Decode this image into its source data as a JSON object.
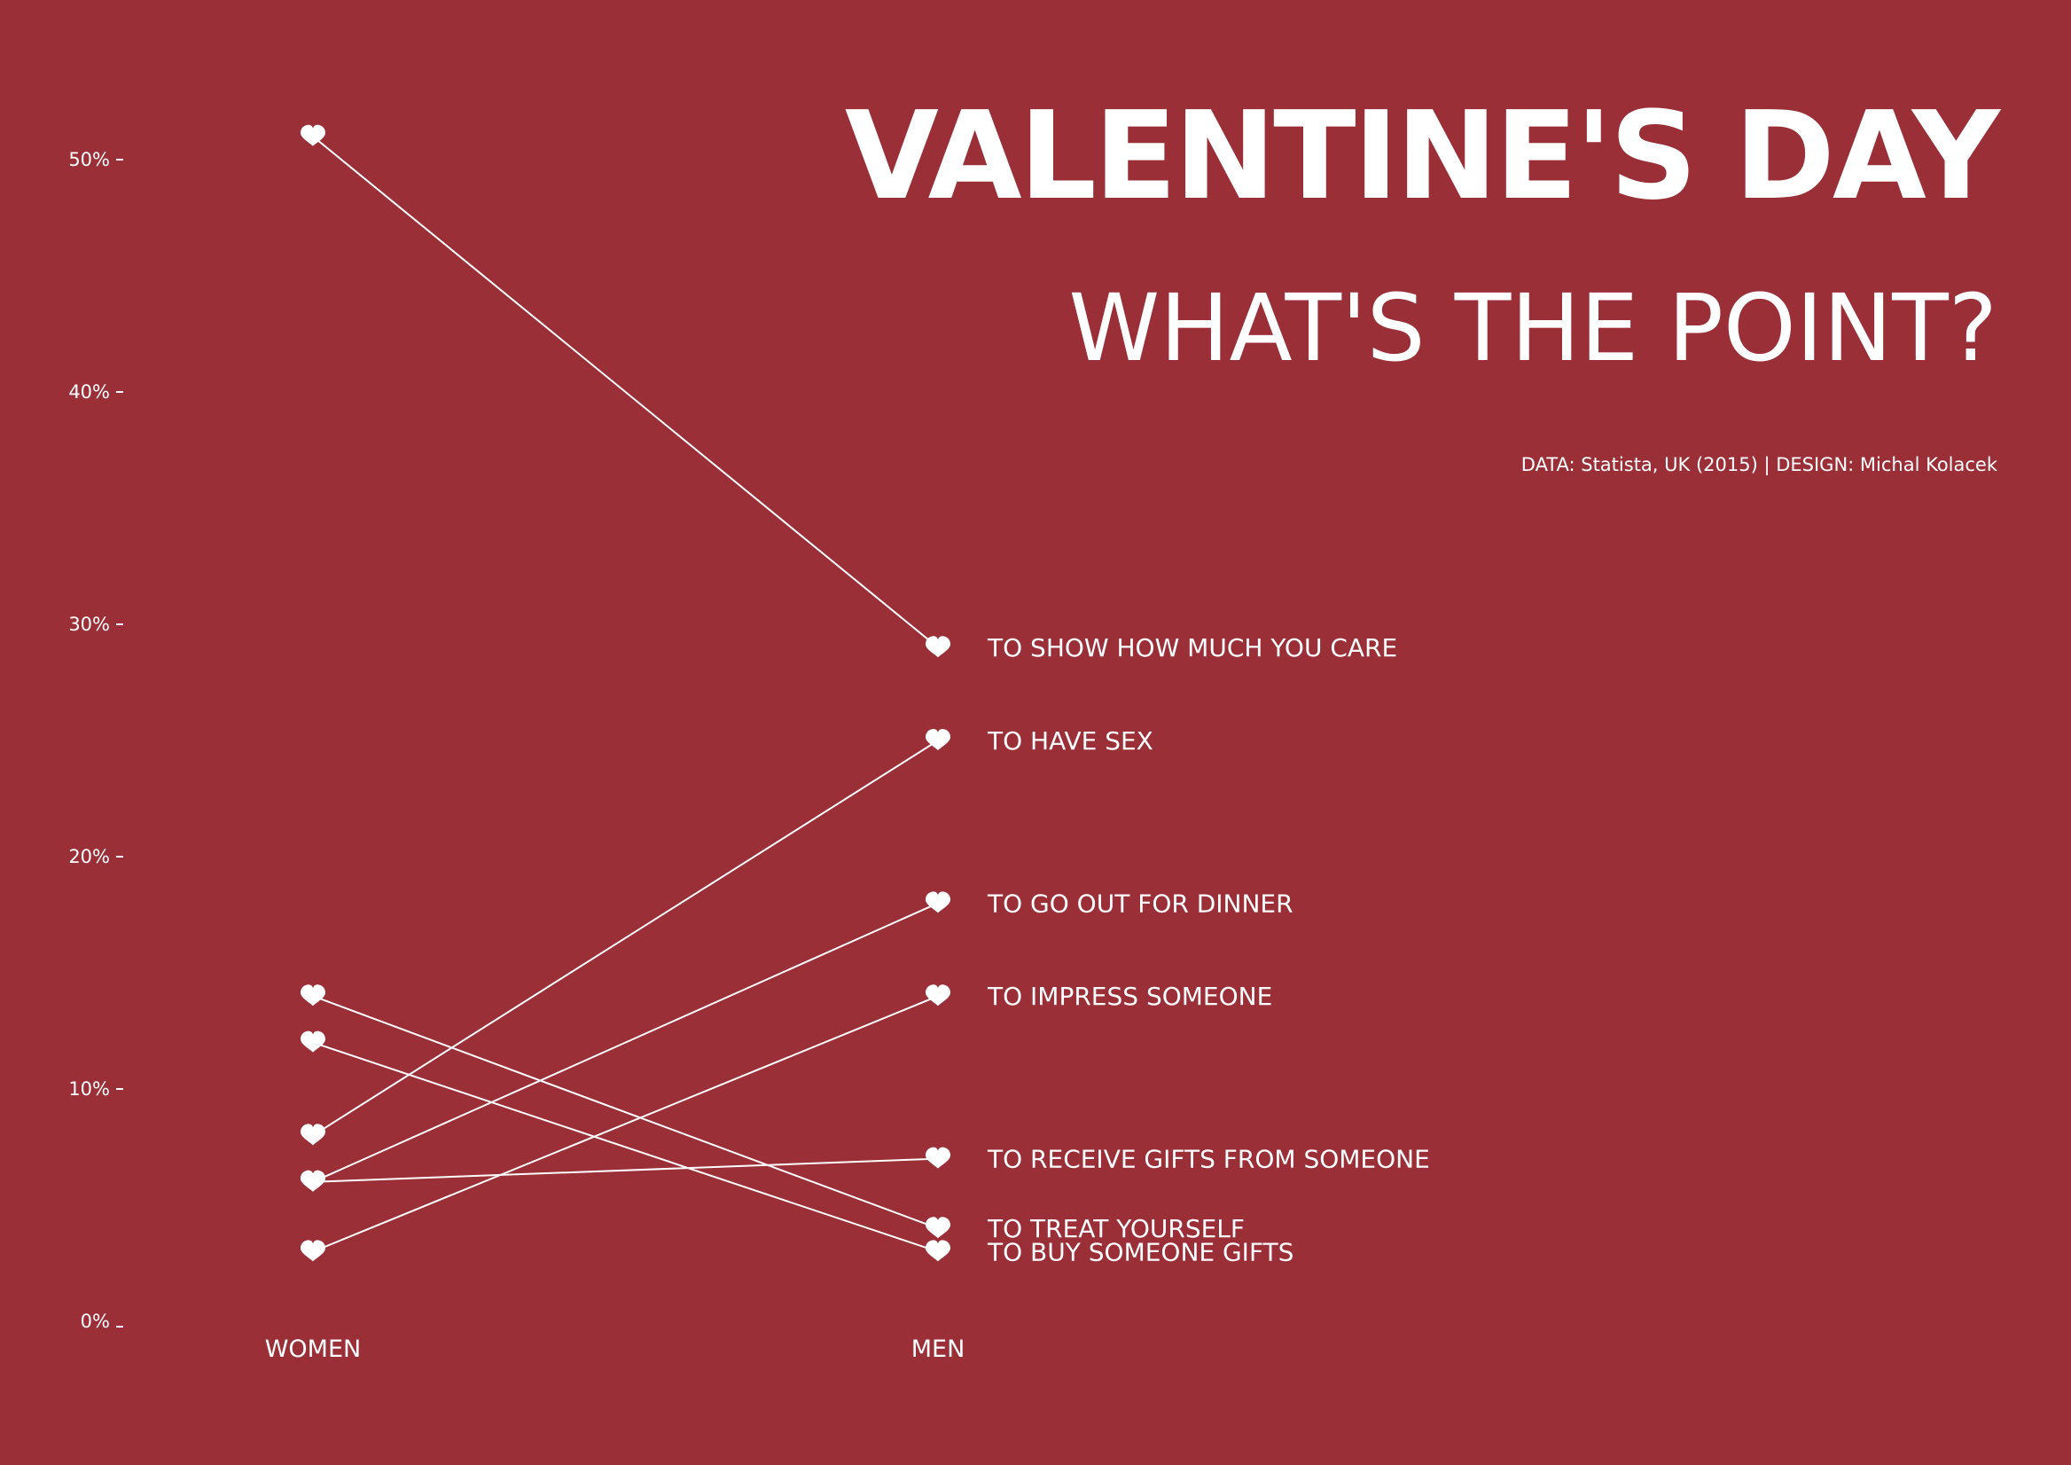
{
  "header": {
    "title": "VALENTINE'S DAY",
    "subtitle": "WHAT'S THE POINT?",
    "credit": "DATA: Statista, UK (2015) | DESIGN: Michal Kolacek"
  },
  "colors": {
    "background": "#9a2f37",
    "foreground": "#ffffff"
  },
  "chart_data": {
    "type": "line",
    "subtype": "slope",
    "marker_icon": "heart-icon",
    "categories": [
      "WOMEN",
      "MEN"
    ],
    "ylim": [
      0,
      50
    ],
    "y_ticks": [
      {
        "value": 0,
        "label": "0%"
      },
      {
        "value": 10,
        "label": "10%"
      },
      {
        "value": 20,
        "label": "20%"
      },
      {
        "value": 30,
        "label": "30%"
      },
      {
        "value": 40,
        "label": "40%"
      },
      {
        "value": 50,
        "label": "50%"
      }
    ],
    "grid": false,
    "series": [
      {
        "name": "TO SHOW HOW MUCH YOU CARE",
        "values": [
          51,
          29
        ]
      },
      {
        "name": "TO HAVE SEX",
        "values": [
          8,
          25
        ]
      },
      {
        "name": "TO GO OUT FOR DINNER",
        "values": [
          6,
          18
        ]
      },
      {
        "name": "TO IMPRESS SOMEONE",
        "values": [
          3,
          14
        ]
      },
      {
        "name": "TO RECEIVE GIFTS FROM SOMEONE",
        "values": [
          6,
          7
        ]
      },
      {
        "name": "TO TREAT YOURSELF",
        "values": [
          14,
          4
        ]
      },
      {
        "name": "TO BUY SOMEONE GIFTS",
        "values": [
          12,
          3
        ]
      }
    ]
  }
}
